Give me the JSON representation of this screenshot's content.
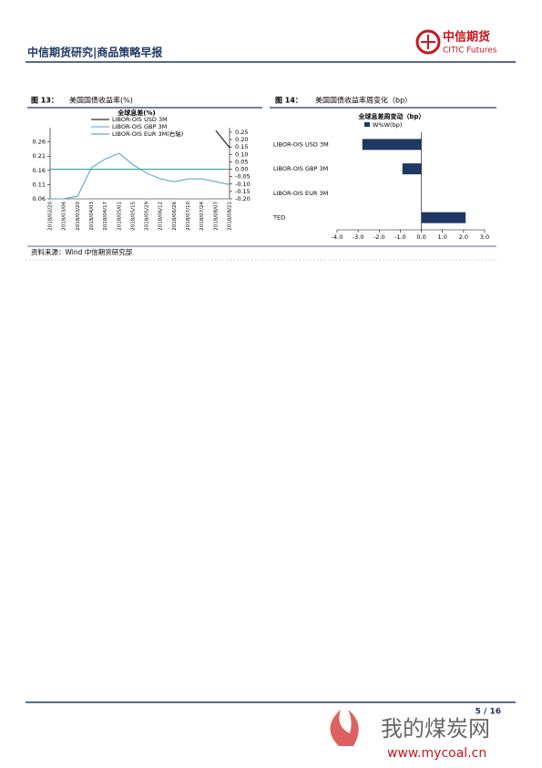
{
  "header": {
    "title": "中信期货研究|商品策略早报",
    "logo_cn": "中信期货",
    "logo_en": "CITIC Futures"
  },
  "figures": [
    {
      "label": "图 13：",
      "caption": "美国国债收益率(%)"
    },
    {
      "label": "图 14：",
      "caption": "美国国债收益率周变化（bp）"
    }
  ],
  "chart_data": [
    {
      "type": "line",
      "title": "全球息差(%)",
      "categories": [
        "2018/02/20",
        "2018/03/06",
        "2018/03/20",
        "2018/04/03",
        "2018/04/17",
        "2018/05/01",
        "2018/05/15",
        "2018/05/29",
        "2018/06/12",
        "2018/06/26",
        "2018/07/10",
        "2018/07/24",
        "2018/08/07",
        "2018/08/21"
      ],
      "series": [
        {
          "name": "LIBOR-OIS USD 3M",
          "color": "#000000",
          "values": [
            null,
            null,
            null,
            null,
            null,
            null,
            null,
            null,
            null,
            null,
            null,
            null,
            0.3,
            0.24
          ]
        },
        {
          "name": "LIBOR-OIS GBP 3M",
          "color": "#4a9fd8",
          "values": [
            0.06,
            0.06,
            0.07,
            0.17,
            0.2,
            0.22,
            0.18,
            0.15,
            0.13,
            0.12,
            0.13,
            0.13,
            0.12,
            0.11
          ]
        },
        {
          "name": "LIBOR-OIS EUR 3M(右轴)",
          "color": "#2aa198",
          "axis": "y2",
          "values": [
            0,
            0,
            0,
            0,
            0,
            0,
            0,
            0,
            0,
            0,
            0,
            0,
            0,
            0
          ]
        }
      ],
      "ylim": [
        0.06,
        0.31
      ],
      "yticks": [
        0.06,
        0.11,
        0.16,
        0.21,
        0.26
      ],
      "y2lim": [
        -0.2,
        0.28
      ],
      "y2ticks": [
        0.25,
        {
          "value": 0.2,
          "label": "0.20"
        },
        0.15,
        {
          "value": 0.1,
          "label": "0.10"
        },
        0.05,
        {
          "value": 0,
          "label": "0.00"
        },
        -0.05,
        {
          "value": -0.1,
          "label": "-0.10"
        },
        -0.15,
        {
          "value": -0.2,
          "label": "-0.20"
        }
      ]
    },
    {
      "type": "hbar",
      "title": "全球息差周变动（bp）",
      "categories": [
        "LIBOR-OIS USD 3M",
        "LIBOR-OIS GBP 3M",
        "LIBOR-OIS EUR 3M",
        "TED"
      ],
      "series": [
        {
          "name": "W%W(bp)",
          "color": "#1f3864",
          "values": [
            -2.8,
            -0.9,
            0,
            2.1
          ]
        }
      ],
      "xlim": [
        -4,
        3
      ],
      "xticks": [
        {
          "value": -4,
          "label": "-4.0"
        },
        {
          "value": -3,
          "label": "-3.0"
        },
        {
          "value": -2,
          "label": "-2.0"
        },
        {
          "value": -1,
          "label": "-1.0"
        },
        {
          "value": 0,
          "label": "0.0"
        },
        {
          "value": 1,
          "label": "1.0"
        },
        {
          "value": 2,
          "label": "2.0"
        },
        {
          "value": 3,
          "label": "3.0"
        }
      ]
    }
  ],
  "source": "资料来源：Wind 中信期货研究部",
  "footer": {
    "page": "5 / 16"
  },
  "watermark": {
    "cn": "我的煤炭网",
    "url": "www.mycoal.cn"
  }
}
